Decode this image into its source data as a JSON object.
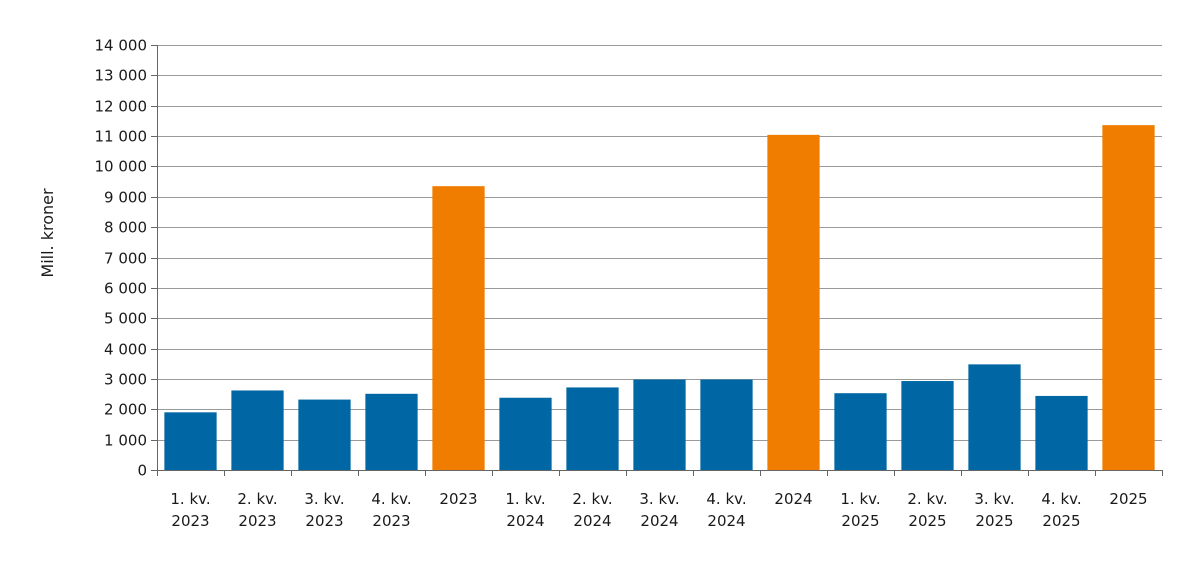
{
  "chart_data": {
    "type": "bar",
    "ylabel": "Mill. kroner",
    "xlabel": "",
    "ylim": [
      0,
      14000
    ],
    "ytick_step": 1000,
    "ytick_labels": [
      "0",
      "1 000",
      "2 000",
      "3 000",
      "4 000",
      "5 000",
      "6 000",
      "7 000",
      "8 000",
      "9 000",
      "10 000",
      "11 000",
      "12 000",
      "13 000",
      "14 000"
    ],
    "grid": true,
    "categories": [
      [
        "1. kv.",
        "2023"
      ],
      [
        "2. kv.",
        "2023"
      ],
      [
        "3. kv.",
        "2023"
      ],
      [
        "4. kv.",
        "2023"
      ],
      [
        "2023"
      ],
      [
        "1. kv.",
        "2024"
      ],
      [
        "2. kv.",
        "2024"
      ],
      [
        "3. kv.",
        "2024"
      ],
      [
        "4. kv.",
        "2024"
      ],
      [
        "2024"
      ],
      [
        "1. kv.",
        "2025"
      ],
      [
        "2. kv.",
        "2025"
      ],
      [
        "3. kv.",
        "2025"
      ],
      [
        "4. kv.",
        "2025"
      ],
      [
        "2025"
      ]
    ],
    "values": [
      1900,
      2620,
      2320,
      2510,
      9350,
      2380,
      2720,
      2980,
      2980,
      11040,
      2530,
      2930,
      3480,
      2440,
      11360
    ],
    "kinds": [
      "quarter",
      "quarter",
      "quarter",
      "quarter",
      "year",
      "quarter",
      "quarter",
      "quarter",
      "quarter",
      "year",
      "quarter",
      "quarter",
      "quarter",
      "quarter",
      "year"
    ],
    "colors": {
      "quarter": "#0067a5",
      "year": "#f07d00"
    }
  }
}
